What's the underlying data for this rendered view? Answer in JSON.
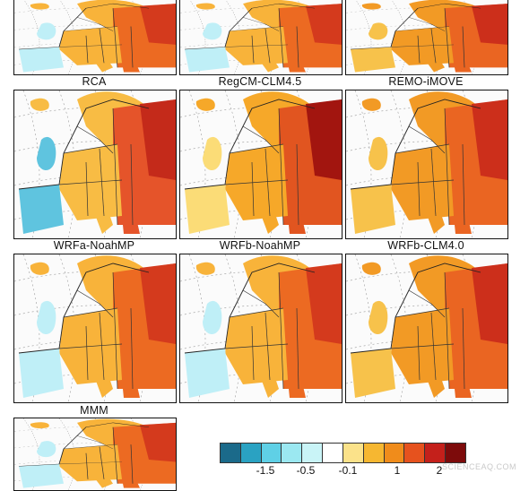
{
  "panels": [
    {
      "label": "RCA",
      "scheme": "mixed"
    },
    {
      "label": "RegCM-CLM4.5",
      "scheme": "mixed"
    },
    {
      "label": "REMO-iMOVE",
      "scheme": "warm"
    },
    {
      "label": "WRFa-NoahMP",
      "scheme": "coolwest"
    },
    {
      "label": "WRFb-NoahMP",
      "scheme": "hot"
    },
    {
      "label": "WRFb-CLM4.0",
      "scheme": "warm"
    },
    {
      "label": "MMM",
      "scheme": "mixed"
    },
    {
      "label": "",
      "scheme": "mixed"
    },
    {
      "label": "",
      "scheme": "warm"
    },
    {
      "label": "",
      "scheme": "mixed"
    }
  ],
  "colorbar": {
    "colors": [
      "#1b6a8a",
      "#2aa2c2",
      "#5fd0e6",
      "#9be8f1",
      "#c9f4f7",
      "#ffffff",
      "#fbe28a",
      "#f6b731",
      "#f08c1b",
      "#e6521e",
      "#c4201b",
      "#7d0b0b"
    ],
    "ticks": [
      "-1.5",
      "-0.5",
      "-0.1",
      "1",
      "2"
    ]
  },
  "watermark": "SCIENCEAQ.COM"
}
